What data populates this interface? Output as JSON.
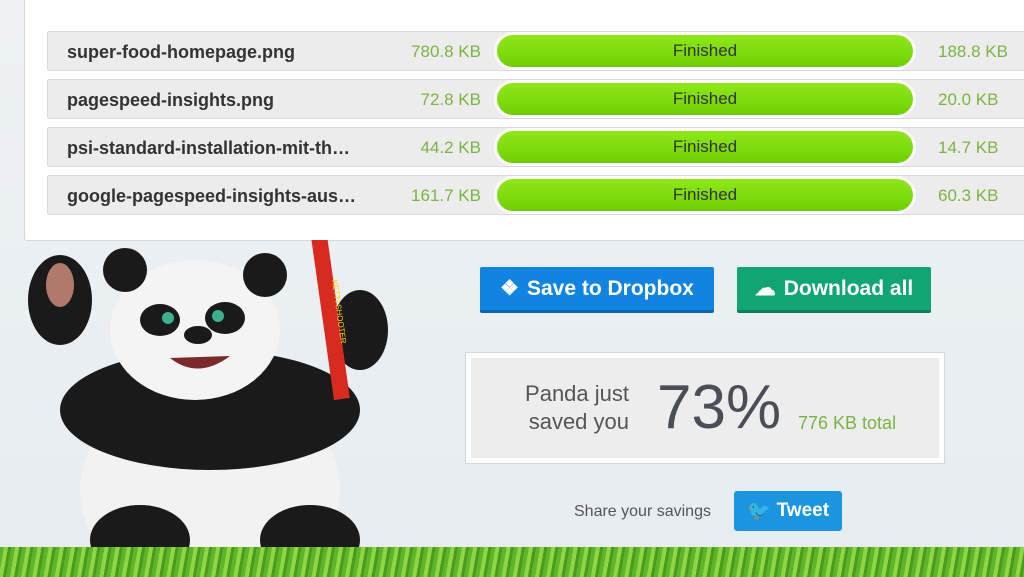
{
  "files": [
    {
      "name": "super-food-homepage.png",
      "original_size": "780.8 KB",
      "status": "Finished",
      "compressed_size": "188.8 KB",
      "progress": 100
    },
    {
      "name": "pagespeed-insights.png",
      "original_size": "72.8 KB",
      "status": "Finished",
      "compressed_size": "20.0 KB",
      "progress": 100
    },
    {
      "name": "psi-standard-installation-mit-th…",
      "original_size": "44.2 KB",
      "status": "Finished",
      "compressed_size": "14.7 KB",
      "progress": 100
    },
    {
      "name": "google-pagespeed-insights-aus…",
      "original_size": "161.7 KB",
      "status": "Finished",
      "compressed_size": "60.3 KB",
      "progress": 100
    }
  ],
  "actions": {
    "dropbox_label": "Save to Dropbox",
    "download_label": "Download all"
  },
  "savings": {
    "line1": "Panda just",
    "line2": "saved you",
    "percent": "73%",
    "total": "776 KB total"
  },
  "share": {
    "label": "Share your savings",
    "tweet_label": "Tweet"
  },
  "mascot": {
    "tube_text": "KETTI SHOOTER"
  },
  "colors": {
    "accent_green": "#7cb342",
    "progress": "#7ddc0e",
    "dropbox": "#1084e0",
    "download": "#10a572",
    "twitter": "#1b95e0"
  }
}
